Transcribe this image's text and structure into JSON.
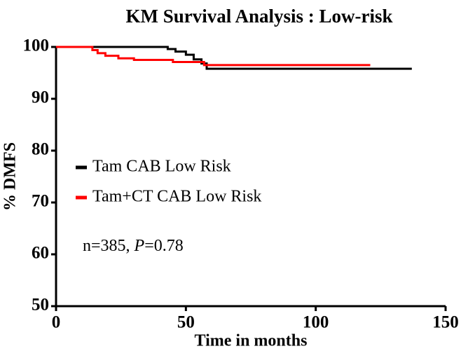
{
  "chart_data": {
    "type": "line",
    "step": true,
    "title": "KM Survival Analysis : Low-risk",
    "x_label": "Time in months",
    "y_label": "% DMFS",
    "xlim": [
      0,
      150
    ],
    "xticks": [
      0,
      50,
      100,
      150
    ],
    "ylim": [
      50,
      100
    ],
    "yticks": [
      50,
      60,
      70,
      80,
      90,
      100
    ],
    "series": [
      {
        "name": "Tam CAB Low Risk",
        "color": "#000000",
        "x": [
          0,
          43,
          46,
          50,
          53,
          56,
          58,
          137
        ],
        "values": [
          100,
          99.6,
          99.1,
          98.5,
          97.6,
          96.8,
          95.8,
          95.8
        ]
      },
      {
        "name": "Tam+CT CAB Low Risk",
        "color": "#ff0000",
        "x": [
          0,
          14,
          16,
          19,
          24,
          30,
          45,
          57,
          121
        ],
        "values": [
          100,
          99.4,
          98.8,
          98.3,
          97.8,
          97.5,
          97.1,
          96.5,
          96.5
        ]
      }
    ],
    "annotation": [
      "n=385, ",
      "P",
      "=0.78"
    ]
  }
}
